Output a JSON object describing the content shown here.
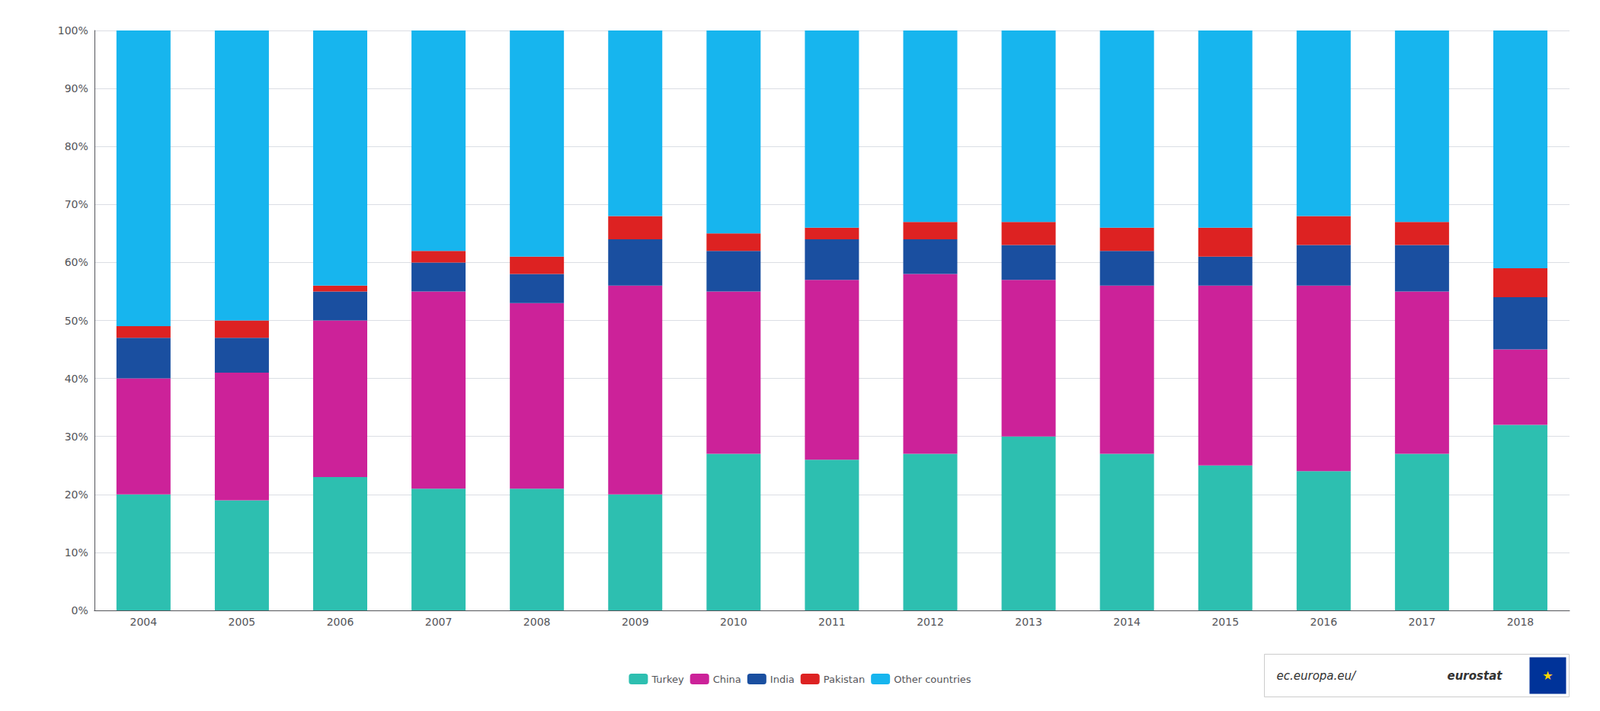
{
  "chart_data": {
    "type": "bar",
    "stacked": true,
    "categories": [
      "2004",
      "2005",
      "2006",
      "2007",
      "2008",
      "2009",
      "2010",
      "2011",
      "2012",
      "2013",
      "2014",
      "2015",
      "2016",
      "2017",
      "2018"
    ],
    "series": [
      {
        "name": "Turkey",
        "color": "#2dbfb0",
        "values": [
          20,
          19,
          23,
          21,
          21,
          20,
          27,
          26,
          27,
          30,
          27,
          25,
          24,
          27,
          32
        ]
      },
      {
        "name": "China",
        "color": "#cc2299",
        "values": [
          20,
          22,
          27,
          34,
          32,
          36,
          28,
          31,
          31,
          27,
          29,
          31,
          32,
          28,
          13
        ]
      },
      {
        "name": "India",
        "color": "#1a4fa0",
        "values": [
          7,
          6,
          5,
          5,
          5,
          8,
          7,
          7,
          6,
          6,
          6,
          5,
          7,
          8,
          9
        ]
      },
      {
        "name": "Pakistan",
        "color": "#dd2222",
        "values": [
          2,
          3,
          1,
          2,
          3,
          4,
          3,
          2,
          3,
          4,
          4,
          5,
          5,
          4,
          5
        ]
      },
      {
        "name": "Other countries",
        "color": "#17b5ee",
        "values": [
          51,
          50,
          44,
          38,
          39,
          32,
          35,
          34,
          33,
          33,
          34,
          34,
          32,
          33,
          41
        ]
      }
    ],
    "ylim": [
      0,
      100
    ],
    "yticks": [
      {
        "value": 0,
        "label": "0%"
      },
      {
        "value": 10,
        "label": "10%"
      },
      {
        "value": 20,
        "label": "20%"
      },
      {
        "value": 30,
        "label": "30%"
      },
      {
        "value": 40,
        "label": "40%"
      },
      {
        "value": 50,
        "label": "50%"
      },
      {
        "value": 60,
        "label": "60%"
      },
      {
        "value": 70,
        "label": "70%"
      },
      {
        "value": 80,
        "label": "80%"
      },
      {
        "value": 90,
        "label": "90%"
      },
      {
        "value": 100,
        "label": "100%"
      }
    ],
    "grid": true,
    "legend": "bottom",
    "annotations": [
      "ec.europa.eu/",
      "eurostat",
      "★"
    ]
  }
}
